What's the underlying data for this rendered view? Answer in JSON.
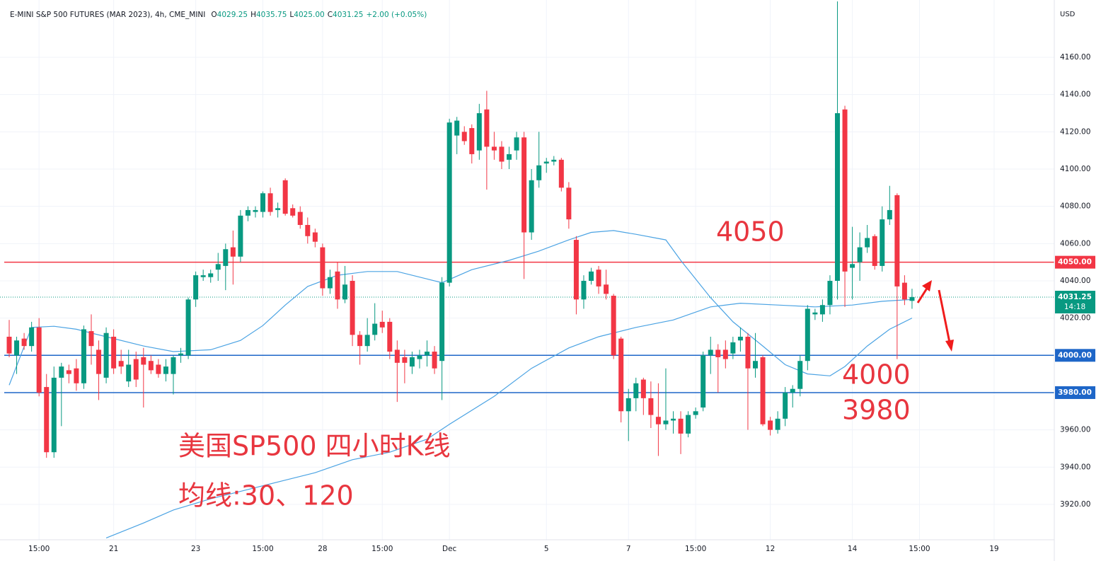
{
  "chart_data": {
    "type": "candlestick",
    "title": "E-MINI S&P 500 FUTURES (MAR 2023), 4h, CME_MINI",
    "ohlc_legend": [
      {
        "key": "O",
        "value": "4029.25"
      },
      {
        "key": "H",
        "value": "4035.75"
      },
      {
        "key": "L",
        "value": "4025.00"
      },
      {
        "key": "C",
        "value": "4031.25"
      }
    ],
    "change": "+2.00 (+0.05%)",
    "currency": "USD",
    "categories": [
      null,
      null,
      null,
      null,
      "15:00",
      null,
      null,
      null,
      null,
      null,
      null,
      null,
      null,
      null,
      "21",
      null,
      null,
      null,
      null,
      null,
      null,
      null,
      null,
      null,
      null,
      "23",
      null,
      null,
      null,
      null,
      null,
      null,
      null,
      null,
      "15:00",
      null,
      null,
      null,
      null,
      null,
      null,
      null,
      "28",
      null,
      null,
      null,
      null,
      null,
      null,
      null,
      "15:00",
      null,
      null,
      null,
      null,
      null,
      null,
      null,
      null,
      "Dec",
      null,
      null,
      null,
      null,
      null,
      null,
      null,
      null,
      null,
      null,
      null,
      null,
      "5",
      null,
      null,
      null,
      null,
      null,
      null,
      null,
      null,
      null,
      null,
      "7",
      null,
      null,
      null,
      null,
      null,
      null,
      null,
      null,
      "15:00",
      null,
      null,
      null,
      null,
      null,
      null,
      null,
      null,
      null,
      "12",
      null,
      null,
      null,
      null,
      null,
      null,
      null,
      null,
      null,
      null,
      "14",
      null,
      null,
      null,
      null,
      null,
      null,
      null,
      null,
      "15:00",
      null,
      null,
      null,
      null,
      null,
      null,
      null,
      null,
      null,
      "19",
      null,
      null,
      null,
      null,
      null,
      null,
      null
    ],
    "open": [
      4010,
      4000,
      4009,
      4005,
      4015,
      3983,
      3948,
      3988,
      3992,
      3993,
      3985,
      4013,
      4003,
      3988,
      4010,
      3997,
      3986,
      3998,
      3999,
      3997,
      3995,
      3990,
      3990,
      4000,
      4000,
      4030,
      4042,
      4042,
      4046,
      4048,
      4058,
      4053,
      4075,
      4077,
      4077,
      4087,
      4078,
      4094,
      4079,
      4077,
      4070,
      4066,
      4058,
      4036,
      4045,
      4030,
      4040,
      4011,
      4005,
      4011,
      4018,
      4018,
      4003,
      3999,
      3994,
      3998,
      4000,
      4002,
      3997,
      4039,
      4118,
      4120,
      4122,
      4110,
      4132,
      4112,
      4112,
      4105,
      4110,
      4117,
      4066,
      4094,
      4103,
      4104,
      4105,
      4090,
      4062,
      4030,
      4040,
      4046,
      4038,
      4032,
      4009,
      3970,
      3977,
      3987,
      3977,
      3967,
      3963,
      3965,
      3966,
      3958,
      3968,
      3972,
      4000,
      4003,
      4003,
      4001,
      4008,
      4010,
      3993,
      3999,
      3965,
      3960,
      3966,
      3980,
      3982,
      3997,
      4022,
      4022,
      4027,
      4040,
      4132,
      4047,
      4050,
      4058,
      4064,
      4048,
      4073,
      4086,
      4039,
      4029.25,
      null,
      null,
      null,
      null,
      null,
      null,
      null,
      null,
      null,
      null,
      null,
      null,
      null,
      null,
      null,
      null,
      null,
      null
    ],
    "high": [
      4019,
      4010,
      4012,
      4018,
      4020,
      3990,
      3994,
      3996,
      3995,
      3998,
      4016,
      4022,
      4008,
      4015,
      4014,
      4003,
      4003,
      4002,
      4004,
      4000,
      3998,
      3998,
      4000,
      4004,
      4031,
      4045,
      4046,
      4046,
      4055,
      4060,
      4067,
      4078,
      4080,
      4080,
      4088,
      4090,
      4082,
      4095,
      4081,
      4080,
      4074,
      4068,
      4060,
      4046,
      4050,
      4048,
      4043,
      4013,
      4020,
      4028,
      4024,
      4020,
      4008,
      4003,
      4002,
      4003,
      4008,
      4005,
      4042,
      4127,
      4128,
      4123,
      4124,
      4135,
      4142,
      4120,
      4115,
      4112,
      4120,
      4120,
      4100,
      4120,
      4106,
      4107,
      4106,
      4093,
      4064,
      4043,
      4047,
      4048,
      4046,
      4033,
      4010,
      3982,
      3988,
      3988,
      3986,
      3985,
      3993,
      3970,
      3970,
      3970,
      3972,
      4002,
      4010,
      4006,
      4008,
      4010,
      4015,
      4012,
      4012,
      4000,
      3967,
      3970,
      3983,
      3984,
      4000,
      4027,
      4025,
      4030,
      4043,
      4190,
      4134,
      4069,
      4066,
      4070,
      4065,
      4080,
      4091,
      4087,
      4043,
      4035.75,
      null,
      null,
      null,
      null,
      null,
      null,
      null,
      null,
      null,
      null,
      null,
      null,
      null,
      null,
      null,
      null,
      null,
      null
    ],
    "low": [
      3999,
      3990,
      4003,
      4002,
      3978,
      3945,
      3945,
      3962,
      3985,
      3981,
      3982,
      3995,
      3976,
      3985,
      3990,
      3990,
      3983,
      3983,
      3972,
      3990,
      3988,
      3986,
      3979,
      3996,
      3998,
      4026,
      4040,
      4039,
      4040,
      4035,
      4038,
      4050,
      4072,
      4074,
      4074,
      4075,
      4074,
      4075,
      4074,
      4068,
      4060,
      4058,
      4032,
      4033,
      4025,
      4028,
      4005,
      3995,
      4002,
      4008,
      4012,
      3998,
      3975,
      3985,
      3990,
      3993,
      3994,
      3990,
      3976,
      4037,
      4108,
      4113,
      4103,
      4105,
      4089,
      4105,
      4100,
      4100,
      4105,
      4041,
      4062,
      4090,
      4098,
      4102,
      4088,
      4068,
      4022,
      4025,
      4038,
      4033,
      4030,
      3998,
      3964,
      3954,
      3970,
      3968,
      3961,
      3946,
      3960,
      3958,
      3947,
      3956,
      3966,
      3970,
      3990,
      3980,
      3993,
      3998,
      4002,
      3960,
      3988,
      3962,
      3957,
      3958,
      3962,
      3972,
      3978,
      3992,
      4019,
      4018,
      4022,
      4030,
      4026,
      4030,
      4040,
      4055,
      4046,
      4045,
      4070,
      3998,
      4027,
      4025,
      null,
      null,
      null,
      null,
      null,
      null,
      null,
      null,
      null,
      null,
      null,
      null,
      null,
      null,
      null,
      null,
      null,
      null
    ],
    "close": [
      4001,
      4008,
      4005,
      4015,
      3980,
      3948,
      3988,
      3994,
      3990,
      3985,
      4014,
      4005,
      3990,
      4012,
      3993,
      3994,
      3995,
      3987,
      3995,
      3992,
      3990,
      3994,
      3999,
      4001,
      4030,
      4043,
      4043,
      4044,
      4049,
      4057,
      4053,
      4075,
      4078,
      4078,
      4087,
      4077,
      4079,
      4076,
      4075,
      4070,
      4064,
      4061,
      4036,
      4042,
      4030,
      4038,
      4011,
      4005,
      4011,
      4017,
      4015,
      4002,
      3996,
      3996,
      3999,
      4000,
      4002,
      3993,
      4039,
      4125,
      4126,
      4115,
      4108,
      4130,
      4112,
      4110,
      4104,
      4108,
      4117,
      4066,
      4094,
      4102,
      4104,
      4105,
      4090,
      4073,
      4030,
      4040,
      4045,
      4037,
      4033,
      4000,
      3970,
      3977,
      3985,
      3977,
      3968,
      3963,
      3965,
      3966,
      3958,
      3968,
      3970,
      4000,
      4003,
      3999,
      3998,
      4007,
      4010,
      3993,
      3997,
      3963,
      3960,
      3966,
      3980,
      3982,
      3997,
      4025,
      4023,
      4027,
      4040,
      4130,
      4045,
      4049,
      4058,
      4063,
      4048,
      4073,
      4078,
      4037,
      4030,
      4031.25,
      null,
      null,
      null,
      null,
      null,
      null,
      null,
      null,
      null,
      null,
      null,
      null,
      null,
      null,
      null,
      null,
      null,
      null
    ],
    "up_color": "#089981",
    "down_color": "#f23645",
    "moving_averages": [
      {
        "color": "#4ba3e3",
        "x": [
          0,
          3,
          6,
          9,
          13,
          18,
          22,
          27,
          31,
          34,
          37,
          40,
          44,
          48,
          52,
          56,
          58,
          62,
          67,
          71,
          75,
          78,
          81,
          84,
          88,
          90,
          94,
          97,
          101,
          104,
          107,
          110,
          112,
          115,
          118,
          121
        ],
        "values": [
          3984,
          4015,
          4015.6,
          4014,
          4010,
          4005,
          4002,
          4003,
          4008,
          4016,
          4027,
          4037,
          4043,
          4045,
          4045,
          4041,
          4039,
          4046,
          4051,
          4056,
          4062,
          4066,
          4067,
          4065,
          4062,
          4051,
          4031,
          4018,
          4005,
          3995,
          3990,
          3989,
          3994,
          4005,
          4014,
          4020
        ]
      },
      {
        "color": "#4ba3e3",
        "x": [
          13,
          18,
          22,
          27,
          32,
          37,
          41,
          46,
          51,
          56,
          59,
          65,
          70,
          75,
          79,
          84,
          89,
          94,
          98,
          103,
          108,
          113,
          117,
          121
        ],
        "values": [
          3902,
          3910,
          3917,
          3923,
          3928,
          3933,
          3937,
          3944,
          3948,
          3955,
          3963,
          3978,
          3993,
          4004,
          4010,
          4015,
          4019,
          4026,
          4028,
          4027,
          4026,
          4027,
          4029,
          4030
        ]
      }
    ],
    "ylim": [
      3901,
      4190
    ],
    "yticks": [
      {
        "value": 3920,
        "label": "3920.00"
      },
      {
        "value": 3940,
        "label": "3940.00"
      },
      {
        "value": 3960,
        "label": "3960.00"
      },
      {
        "value": 3980,
        "label": "3980.00"
      },
      {
        "value": 4000,
        "label": "4000.00"
      },
      {
        "value": 4020,
        "label": "4020.00"
      },
      {
        "value": 4040,
        "label": "4040.00"
      },
      {
        "value": 4060,
        "label": "4060.00"
      },
      {
        "value": 4080,
        "label": "4080.00"
      },
      {
        "value": 4100,
        "label": "4100.00"
      },
      {
        "value": 4120,
        "label": "4120.00"
      },
      {
        "value": 4140,
        "label": "4140.00"
      },
      {
        "value": 4160,
        "label": "4160.00"
      }
    ],
    "grid": true,
    "horizontal_lines": [
      {
        "value": 4050,
        "label": "4050.00",
        "color": "#f23645"
      },
      {
        "value": 4000,
        "label": "4000.00",
        "color": "#1e66c8"
      },
      {
        "value": 3980,
        "label": "3980.00",
        "color": "#1e66c8"
      }
    ],
    "last_price": {
      "value": 4031.25,
      "label": "4031.25",
      "countdown": "14:18",
      "color": "#089981"
    },
    "annotations": [
      "4050",
      "4000",
      "3980",
      "美国SP500 四小时K线",
      "均线:30、120"
    ]
  }
}
